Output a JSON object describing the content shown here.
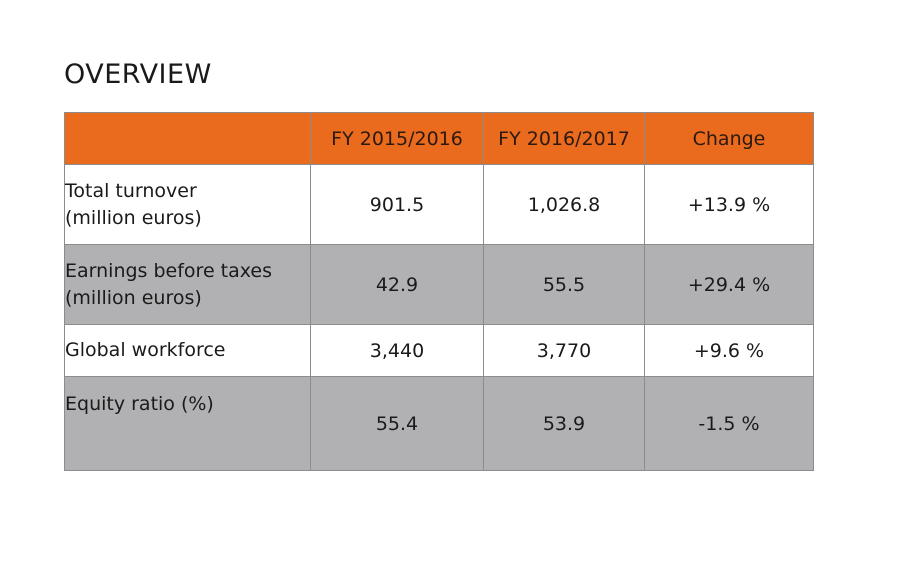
{
  "title": "OVERVIEW",
  "table": {
    "headers": [
      "",
      "FY 2015/2016",
      "FY 2016/2017",
      "Change"
    ],
    "rows": [
      {
        "label_line1": "Total turnover",
        "label_line2": "(million euros)",
        "fy2015_2016": "901.5",
        "fy2016_2017": "1,026.8",
        "change": "+13.9 %"
      },
      {
        "label_line1": "Earnings before taxes",
        "label_line2": "(million euros)",
        "fy2015_2016": "42.9",
        "fy2016_2017": "55.5",
        "change": "+29.4 %"
      },
      {
        "label_line1": "Global workforce",
        "fy2015_2016": "3,440",
        "fy2016_2017": "3,770",
        "change": "+9.6 %"
      },
      {
        "label_line1": "Equity ratio (%)",
        "fy2015_2016": "55.4",
        "fy2016_2017": "53.9",
        "change": "-1.5 %"
      }
    ]
  },
  "colors": {
    "header_background": "#ea6a1e",
    "shaded_row_background": "#b1b1b3",
    "border": "#8c8c8c"
  }
}
